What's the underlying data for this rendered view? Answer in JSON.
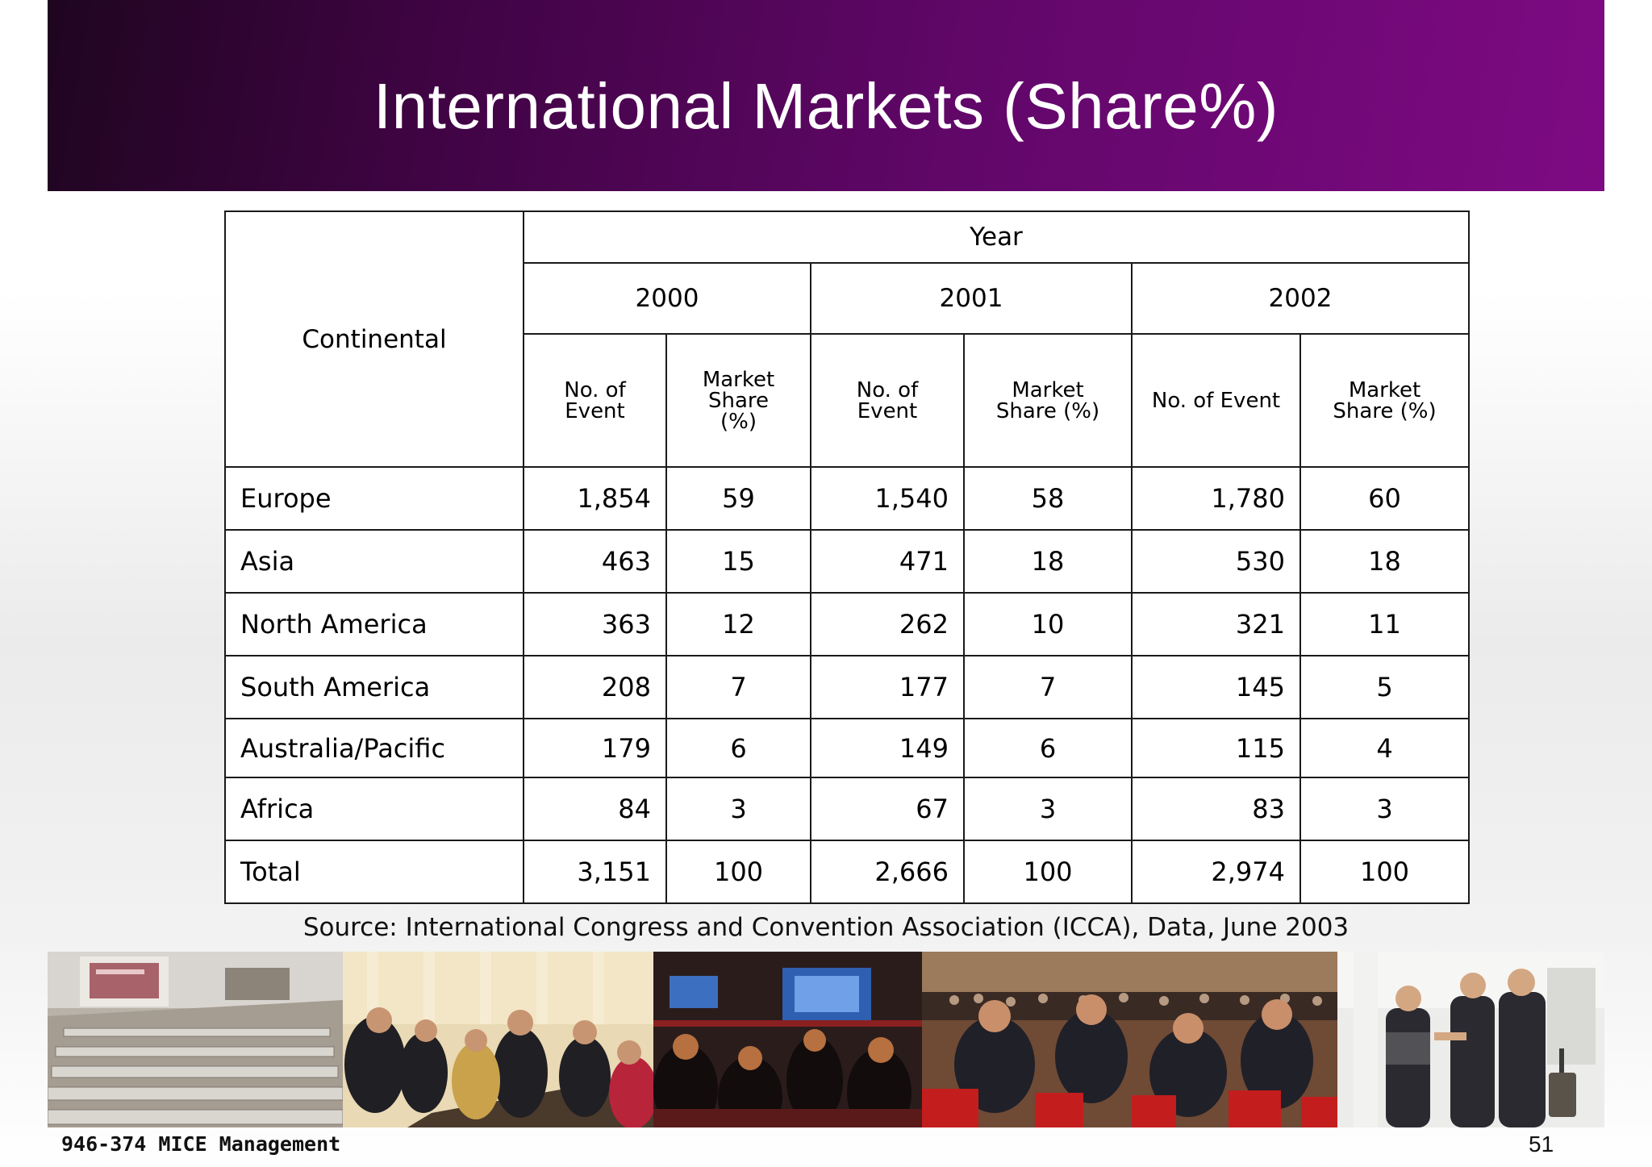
{
  "slide": {
    "title": "International Markets (Share%)",
    "source": "Source: International Congress and Convention Association (ICCA), Data, June 2003",
    "footer_label": "946-374 MICE Management",
    "page_number": "51"
  },
  "table": {
    "row_header": "Continental",
    "group_header": "Year",
    "years": [
      "2000",
      "2001",
      "2002"
    ],
    "sub_headers": {
      "events_2000": "No. of Event",
      "share_2000": "Market Share (%)",
      "events_2001": "No. of Event",
      "share_2001": "Market Share (%)",
      "events_2002": "No. of Event",
      "share_2002": "Market Share (%)"
    },
    "rows": [
      {
        "name": "Europe",
        "e2000": "1,854",
        "s2000": "59",
        "e2001": "1,540",
        "s2001": "58",
        "e2002": "1,780",
        "s2002": "60"
      },
      {
        "name": "Asia",
        "e2000": "463",
        "s2000": "15",
        "e2001": "471",
        "s2001": "18",
        "e2002": "530",
        "s2002": "18"
      },
      {
        "name": "North America",
        "e2000": "363",
        "s2000": "12",
        "e2001": "262",
        "s2001": "10",
        "e2002": "321",
        "s2002": "11"
      },
      {
        "name": "South America",
        "e2000": "208",
        "s2000": "7",
        "e2001": "177",
        "s2001": "7",
        "e2002": "145",
        "s2002": "5"
      },
      {
        "name": "Australia/Pacific",
        "e2000": "179",
        "s2000": "6",
        "e2001": "149",
        "s2001": "6",
        "e2002": "115",
        "s2002": "4"
      },
      {
        "name": "Africa",
        "e2000": "84",
        "s2000": "3",
        "e2001": "67",
        "s2001": "3",
        "e2002": "83",
        "s2002": "3"
      },
      {
        "name": "Total",
        "e2000": "3,151",
        "s2000": "100",
        "e2001": "2,666",
        "s2001": "100",
        "e2002": "2,974",
        "s2002": "100"
      }
    ]
  },
  "photos": [
    {
      "name": "auditorium-photo"
    },
    {
      "name": "meeting-table-photo"
    },
    {
      "name": "conference-audience-photo"
    },
    {
      "name": "crowded-hall-photo"
    },
    {
      "name": "handshake-photo"
    }
  ]
}
